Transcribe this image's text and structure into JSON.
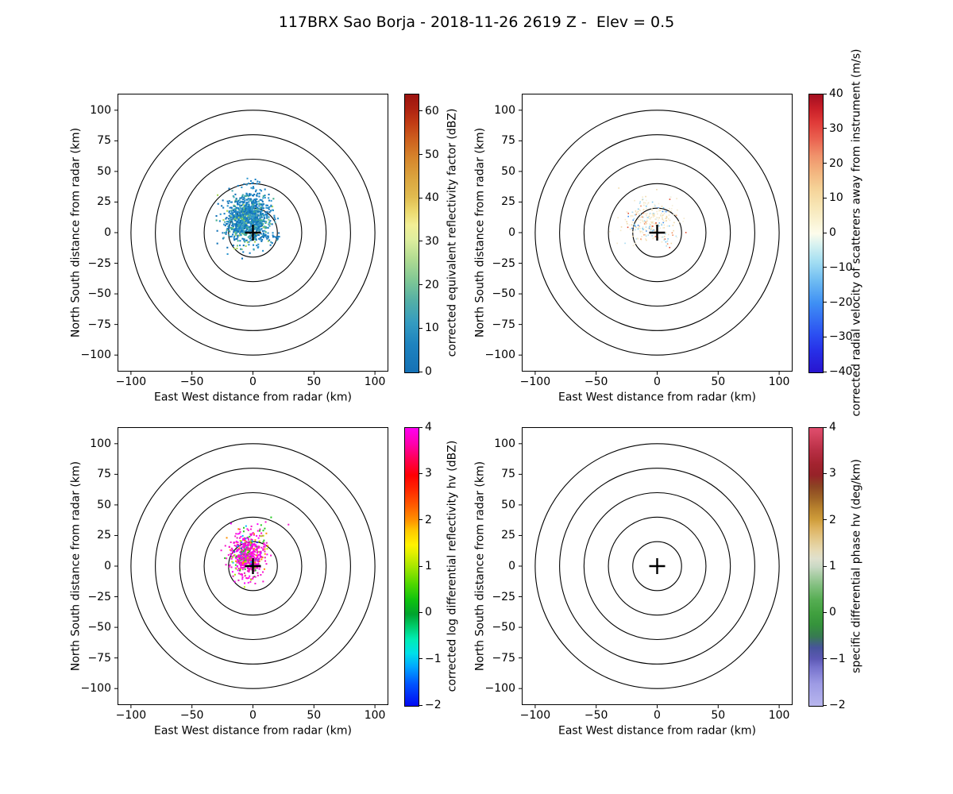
{
  "title": "117BRX Sao Borja - 2018-11-26 2619 Z -  Elev = 0.5",
  "chart_data": {
    "type": "scatter",
    "subtype": "radar_ppi_grid_2x2",
    "title": "117BRX Sao Borja - 2018-11-26 2619 Z -  Elev = 0.5",
    "xlabel": "East West distance from radar (km)",
    "ylabel": "North South distance from radar (km)",
    "xticks": [
      -100,
      -50,
      0,
      50,
      100
    ],
    "yticks": [
      100,
      75,
      50,
      25,
      0,
      -25,
      -50,
      -75,
      -100
    ],
    "xlim": [
      -111,
      111
    ],
    "ylim": [
      -113.5,
      113.5
    ],
    "grid": false,
    "range_rings_km": [
      20,
      40,
      60,
      80,
      100
    ],
    "center_marker": "+",
    "ring_color": "#000000",
    "panels": [
      {
        "id": "reflectivity",
        "field": "corrected equivalent reflectivity factor",
        "colorbar": {
          "label": "corrected equivalent reflectivity factor (dBZ)",
          "vmin": 0,
          "vmax": 64,
          "ticks": [
            0,
            10,
            20,
            30,
            40,
            50,
            60
          ],
          "gradient": [
            [
              0,
              "#1571b5"
            ],
            [
              0.1,
              "#1e83bf"
            ],
            [
              0.18,
              "#359cc0"
            ],
            [
              0.26,
              "#55b0a5"
            ],
            [
              0.33,
              "#7fc795"
            ],
            [
              0.41,
              "#b2dc92"
            ],
            [
              0.48,
              "#dfee9e"
            ],
            [
              0.53,
              "#f2ef96"
            ],
            [
              0.58,
              "#ecd96e"
            ],
            [
              0.63,
              "#e0bc50"
            ],
            [
              0.7,
              "#dba43e"
            ],
            [
              0.77,
              "#d6862c"
            ],
            [
              0.84,
              "#cd5f1e"
            ],
            [
              0.9,
              "#c03a14"
            ],
            [
              0.95,
              "#ad2111"
            ],
            [
              1,
              "#9b1310"
            ]
          ]
        },
        "clusters": [
          {
            "n": 1150,
            "cx": -4,
            "cy": 11,
            "sx": 8.5,
            "sy": 9.5,
            "size": 2.1,
            "colors": [
              [
                "#1373b8",
                26
              ],
              [
                "#1b80c4",
                30
              ],
              [
                "#2e96cf",
                20
              ],
              [
                "#45a8b4",
                9
              ],
              [
                "#3fae8c",
                8
              ],
              [
                "#7cc87a",
                4
              ],
              [
                "#a8d65c",
                3
              ]
            ]
          },
          {
            "n": 16,
            "cx": 1,
            "cy": 39,
            "sx": 5,
            "sy": 2.5,
            "size": 2.0,
            "colors": [
              [
                "#1b80c4",
                70
              ],
              [
                "#2e96cf",
                30
              ]
            ]
          },
          {
            "n": 24,
            "cx": 15,
            "cy": -3,
            "sx": 7,
            "sy": 1.3,
            "size": 2.0,
            "colors": [
              [
                "#1373b8",
                50
              ],
              [
                "#1b80c4",
                50
              ]
            ]
          }
        ]
      },
      {
        "id": "velocity",
        "field": "corrected radial velocity of scatterers away from instrument",
        "colorbar": {
          "label": "corrected radial velocity of scatterers away from instrument (m/s)",
          "vmin": -40,
          "vmax": 40,
          "ticks": [
            40,
            30,
            20,
            10,
            0,
            -10,
            -20,
            -30,
            -40
          ],
          "gradient": [
            [
              0,
              "#2815cf"
            ],
            [
              0.08,
              "#2731e8"
            ],
            [
              0.14,
              "#2c51f2"
            ],
            [
              0.25,
              "#3f90f4"
            ],
            [
              0.33,
              "#6fbcf2"
            ],
            [
              0.4,
              "#a5dff2"
            ],
            [
              0.46,
              "#d8f2f0"
            ],
            [
              0.5,
              "#fdfceb"
            ],
            [
              0.54,
              "#faf3d4"
            ],
            [
              0.6,
              "#f7e5b4"
            ],
            [
              0.66,
              "#f5d398"
            ],
            [
              0.72,
              "#f3b57f"
            ],
            [
              0.78,
              "#f0926b"
            ],
            [
              0.84,
              "#ea6250"
            ],
            [
              0.9,
              "#e03a38"
            ],
            [
              0.95,
              "#c81f28"
            ],
            [
              1,
              "#a30e20"
            ]
          ]
        },
        "clusters": [
          {
            "n": 290,
            "cx": -6,
            "cy": 9,
            "sx": 11,
            "sy": 9.5,
            "size": 1.6,
            "colors": [
              [
                "#f5e8c8",
                34
              ],
              [
                "#f7f0da",
                20
              ],
              [
                "#f0d9a8",
                15
              ],
              [
                "#a8dcf2",
                10
              ],
              [
                "#7cc8ee",
                7
              ],
              [
                "#3c8cf0",
                5
              ],
              [
                "#ef8e5e",
                4
              ],
              [
                "#e04a2e",
                5
              ]
            ]
          }
        ]
      },
      {
        "id": "differential_reflectivity",
        "field": "corrected log differential reflectivity hv",
        "colorbar": {
          "label": "corrected log differential reflectivity hv (dBZ)",
          "vmin": -2,
          "vmax": 4,
          "ticks": [
            4,
            3,
            2,
            1,
            0,
            -1,
            -2
          ],
          "gradient": [
            [
              0,
              "#020af2"
            ],
            [
              0.08,
              "#0055ff"
            ],
            [
              0.14,
              "#00a6ff"
            ],
            [
              0.19,
              "#00e0e8"
            ],
            [
              0.24,
              "#00ecb4"
            ],
            [
              0.29,
              "#00c865"
            ],
            [
              0.33,
              "#00a32e"
            ],
            [
              0.38,
              "#0ec20f"
            ],
            [
              0.44,
              "#52d800"
            ],
            [
              0.5,
              "#a5e600"
            ],
            [
              0.55,
              "#e2f000"
            ],
            [
              0.58,
              "#fff200"
            ],
            [
              0.63,
              "#ffc900"
            ],
            [
              0.67,
              "#ff9000"
            ],
            [
              0.72,
              "#ff5d00"
            ],
            [
              0.78,
              "#ff2600"
            ],
            [
              0.83,
              "#ff0004"
            ],
            [
              0.89,
              "#ff0058"
            ],
            [
              0.94,
              "#ff00a8"
            ],
            [
              1,
              "#ff00f2"
            ]
          ]
        },
        "clusters": [
          {
            "n": 620,
            "cx": -4,
            "cy": 9,
            "sx": 6.5,
            "sy": 8.5,
            "size": 2.0,
            "colors": [
              [
                "#f714cd",
                44
              ],
              [
                "#ff00ff",
                20
              ],
              [
                "#e020b0",
                9
              ],
              [
                "#22c81e",
                8
              ],
              [
                "#ff9100",
                7
              ],
              [
                "#00b8ff",
                4
              ],
              [
                "#2222f0",
                3
              ],
              [
                "#aaee00",
                5
              ]
            ]
          },
          {
            "n": 10,
            "cx": 5,
            "cy": 32,
            "sx": 9,
            "sy": 4,
            "size": 2.0,
            "colors": [
              [
                "#22c81e",
                40
              ],
              [
                "#f714cd",
                40
              ],
              [
                "#ff9100",
                20
              ]
            ]
          }
        ]
      },
      {
        "id": "specific_differential_phase",
        "field": "specific differential phase hv",
        "colorbar": {
          "label": "specific differential phase hv (deg/km)",
          "vmin": -2,
          "vmax": 4,
          "ticks": [
            4,
            3,
            2,
            1,
            0,
            -1,
            -2
          ],
          "gradient": [
            [
              0,
              "#b8b6ee"
            ],
            [
              0.08,
              "#9d9ae4"
            ],
            [
              0.14,
              "#7672cc"
            ],
            [
              0.17,
              "#5c58b4"
            ],
            [
              0.21,
              "#47549a"
            ],
            [
              0.25,
              "#377a51"
            ],
            [
              0.29,
              "#35923c"
            ],
            [
              0.33,
              "#3f9f3e"
            ],
            [
              0.38,
              "#55ad52"
            ],
            [
              0.43,
              "#7fbe7c"
            ],
            [
              0.47,
              "#a8cda4"
            ],
            [
              0.5,
              "#c9d9c4"
            ],
            [
              0.53,
              "#dfe0cd"
            ],
            [
              0.56,
              "#e6dab4"
            ],
            [
              0.6,
              "#e3c88b"
            ],
            [
              0.64,
              "#ddb25f"
            ],
            [
              0.67,
              "#cf9d3b"
            ],
            [
              0.71,
              "#b9832e"
            ],
            [
              0.75,
              "#9d6226"
            ],
            [
              0.79,
              "#8c4423"
            ],
            [
              0.83,
              "#962228"
            ],
            [
              0.87,
              "#a3232f"
            ],
            [
              0.92,
              "#b82f45"
            ],
            [
              0.96,
              "#cd3f59"
            ],
            [
              1,
              "#e04e6e"
            ]
          ]
        },
        "clusters": []
      }
    ]
  }
}
